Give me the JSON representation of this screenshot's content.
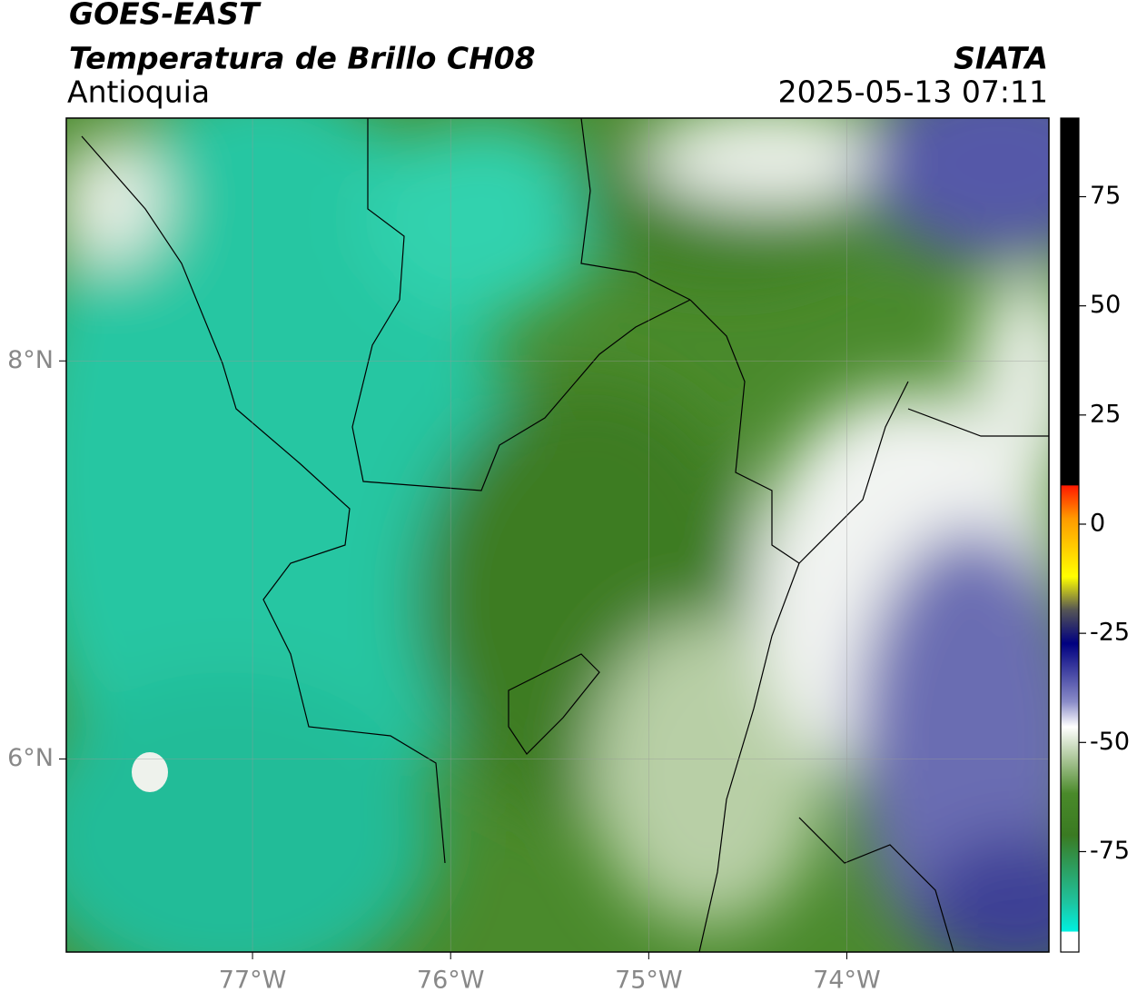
{
  "title": "GOES-EAST",
  "subtitle": "Temperatura de Brillo CH08",
  "region": "Antioquia",
  "source": "SIATA",
  "timestamp": "2025-05-13 07:11",
  "map": {
    "xlim": [
      -77.94,
      -72.98
    ],
    "ylim": [
      5.03,
      9.22
    ],
    "xticks": [
      {
        "value": -77,
        "label": "77°W"
      },
      {
        "value": -76,
        "label": "76°W"
      },
      {
        "value": -75,
        "label": "75°W"
      },
      {
        "value": -74,
        "label": "74°W"
      }
    ],
    "yticks": [
      {
        "value": 8,
        "label": "8°N"
      },
      {
        "value": 6,
        "label": "6°N"
      }
    ],
    "grid": true
  },
  "colorbar": {
    "lim": [
      -98,
      93
    ],
    "ticks": [
      75,
      50,
      25,
      0,
      -25,
      -50,
      -75
    ]
  }
}
